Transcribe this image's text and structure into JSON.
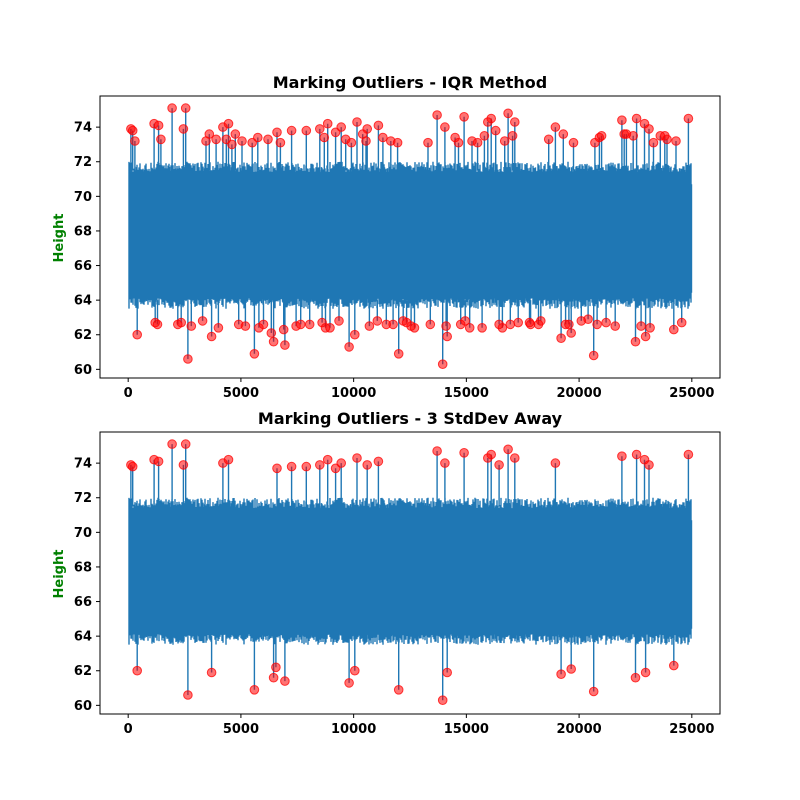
{
  "colors": {
    "line": "#1f77b4",
    "outlier": "#ff0000",
    "ylabel": "#008000",
    "axes": "#000000"
  },
  "chart_data": [
    {
      "type": "line",
      "title": "Marking Outliers - IQR Method",
      "xlabel": "",
      "ylabel": "Height",
      "xlim": [
        -1250,
        26250
      ],
      "ylim": [
        59.5,
        75.8
      ],
      "xticks": [
        "0",
        "5000",
        "10000",
        "15000",
        "20000",
        "25000"
      ],
      "yticks": [
        "60",
        "62",
        "64",
        "66",
        "68",
        "70",
        "72",
        "74"
      ],
      "series": [
        {
          "kind": "line",
          "n_points": 25000,
          "center": 67.99,
          "typical_range": [
            63.5,
            72.0
          ],
          "color": "#1f77b4"
        },
        {
          "kind": "outlier_markers",
          "color": "#ff0000",
          "points": [
            [
              120,
              73.9
            ],
            [
              200,
              73.8
            ],
            [
              300,
              73.2
            ],
            [
              400,
              62.0
            ],
            [
              1150,
              74.2
            ],
            [
              1200,
              62.7
            ],
            [
              1300,
              62.6
            ],
            [
              1350,
              74.1
            ],
            [
              1450,
              73.3
            ],
            [
              1950,
              75.1
            ],
            [
              2200,
              62.6
            ],
            [
              2350,
              62.7
            ],
            [
              2450,
              73.9
            ],
            [
              2550,
              75.1
            ],
            [
              2650,
              60.6
            ],
            [
              2800,
              62.5
            ],
            [
              3300,
              62.8
            ],
            [
              3450,
              73.2
            ],
            [
              3600,
              73.6
            ],
            [
              3700,
              61.9
            ],
            [
              3900,
              73.3
            ],
            [
              4000,
              62.4
            ],
            [
              4200,
              74.0
            ],
            [
              4350,
              73.3
            ],
            [
              4450,
              74.2
            ],
            [
              4600,
              73.0
            ],
            [
              4750,
              73.6
            ],
            [
              4900,
              62.6
            ],
            [
              5050,
              73.2
            ],
            [
              5200,
              62.5
            ],
            [
              5500,
              73.1
            ],
            [
              5600,
              60.9
            ],
            [
              5750,
              73.4
            ],
            [
              5800,
              62.4
            ],
            [
              6000,
              62.6
            ],
            [
              6200,
              73.3
            ],
            [
              6350,
              62.1
            ],
            [
              6450,
              61.6
            ],
            [
              6600,
              73.7
            ],
            [
              6750,
              73.1
            ],
            [
              6900,
              62.3
            ],
            [
              6950,
              61.4
            ],
            [
              7250,
              73.8
            ],
            [
              7450,
              62.5
            ],
            [
              7650,
              62.6
            ],
            [
              7900,
              73.8
            ],
            [
              8050,
              62.6
            ],
            [
              8500,
              73.9
            ],
            [
              8600,
              62.7
            ],
            [
              8700,
              73.4
            ],
            [
              8750,
              62.4
            ],
            [
              8850,
              74.2
            ],
            [
              8950,
              62.4
            ],
            [
              9200,
              73.7
            ],
            [
              9350,
              62.8
            ],
            [
              9450,
              74.0
            ],
            [
              9650,
              73.3
            ],
            [
              9800,
              61.3
            ],
            [
              9900,
              73.1
            ],
            [
              10050,
              62.0
            ],
            [
              10150,
              74.3
            ],
            [
              10400,
              73.6
            ],
            [
              10550,
              73.2
            ],
            [
              10600,
              73.9
            ],
            [
              10700,
              62.5
            ],
            [
              11050,
              62.8
            ],
            [
              11100,
              74.1
            ],
            [
              11300,
              73.4
            ],
            [
              11450,
              62.6
            ],
            [
              11650,
              73.2
            ],
            [
              11750,
              62.6
            ],
            [
              11950,
              73.1
            ],
            [
              12000,
              60.9
            ],
            [
              12200,
              62.8
            ],
            [
              12350,
              62.7
            ],
            [
              12550,
              62.5
            ],
            [
              12700,
              62.4
            ],
            [
              13300,
              73.1
            ],
            [
              13400,
              62.6
            ],
            [
              13700,
              74.7
            ],
            [
              13950,
              60.3
            ],
            [
              14050,
              74.0
            ],
            [
              14100,
              62.5
            ],
            [
              14150,
              61.9
            ],
            [
              14500,
              73.4
            ],
            [
              14650,
              73.1
            ],
            [
              14750,
              62.6
            ],
            [
              14900,
              74.6
            ],
            [
              14950,
              62.8
            ],
            [
              15150,
              62.4
            ],
            [
              15250,
              73.2
            ],
            [
              15500,
              73.1
            ],
            [
              15700,
              62.4
            ],
            [
              15800,
              73.5
            ],
            [
              15950,
              74.3
            ],
            [
              16100,
              74.5
            ],
            [
              16300,
              73.8
            ],
            [
              16450,
              62.6
            ],
            [
              16600,
              62.4
            ],
            [
              16700,
              73.2
            ],
            [
              16850,
              74.8
            ],
            [
              16950,
              62.6
            ],
            [
              17050,
              73.5
            ],
            [
              17150,
              74.3
            ],
            [
              17300,
              62.7
            ],
            [
              17800,
              62.7
            ],
            [
              17850,
              62.6
            ],
            [
              18200,
              62.6
            ],
            [
              18300,
              62.8
            ],
            [
              18650,
              73.3
            ],
            [
              18950,
              74.0
            ],
            [
              19200,
              61.8
            ],
            [
              19300,
              73.6
            ],
            [
              19400,
              62.6
            ],
            [
              19550,
              62.6
            ],
            [
              19650,
              62.1
            ],
            [
              19750,
              73.1
            ],
            [
              20100,
              62.8
            ],
            [
              20400,
              62.9
            ],
            [
              20650,
              60.8
            ],
            [
              20700,
              73.1
            ],
            [
              20800,
              62.6
            ],
            [
              20900,
              73.4
            ],
            [
              21000,
              73.5
            ],
            [
              21200,
              62.7
            ],
            [
              21600,
              62.5
            ],
            [
              21900,
              74.4
            ],
            [
              22000,
              73.6
            ],
            [
              22100,
              73.6
            ],
            [
              22400,
              73.5
            ],
            [
              22500,
              61.6
            ],
            [
              22550,
              74.5
            ],
            [
              22750,
              62.5
            ],
            [
              22900,
              74.2
            ],
            [
              22950,
              61.9
            ],
            [
              23100,
              73.9
            ],
            [
              23150,
              62.4
            ],
            [
              23300,
              73.1
            ],
            [
              23600,
              73.5
            ],
            [
              23800,
              73.5
            ],
            [
              23900,
              73.3
            ],
            [
              24200,
              62.3
            ],
            [
              24300,
              73.2
            ],
            [
              24550,
              62.7
            ],
            [
              24850,
              74.5
            ]
          ]
        }
      ]
    },
    {
      "type": "line",
      "title": "Marking Outliers -  3 StdDev Away",
      "xlabel": "",
      "ylabel": "Height",
      "xlim": [
        -1250,
        26250
      ],
      "ylim": [
        59.5,
        75.8
      ],
      "xticks": [
        "0",
        "5000",
        "10000",
        "15000",
        "20000",
        "25000"
      ],
      "yticks": [
        "60",
        "62",
        "64",
        "66",
        "68",
        "70",
        "72",
        "74"
      ],
      "series": [
        {
          "kind": "line",
          "n_points": 25000,
          "center": 67.99,
          "typical_range": [
            63.5,
            72.0
          ],
          "color": "#1f77b4"
        },
        {
          "kind": "outlier_markers",
          "color": "#ff0000",
          "points": [
            [
              120,
              73.9
            ],
            [
              200,
              73.8
            ],
            [
              400,
              62.0
            ],
            [
              1150,
              74.2
            ],
            [
              1350,
              74.1
            ],
            [
              1950,
              75.1
            ],
            [
              2450,
              73.9
            ],
            [
              2550,
              75.1
            ],
            [
              2650,
              60.6
            ],
            [
              3700,
              61.9
            ],
            [
              4200,
              74.0
            ],
            [
              4450,
              74.2
            ],
            [
              5600,
              60.9
            ],
            [
              6450,
              61.6
            ],
            [
              6550,
              62.2
            ],
            [
              6600,
              73.7
            ],
            [
              6950,
              61.4
            ],
            [
              7250,
              73.8
            ],
            [
              7900,
              73.8
            ],
            [
              8500,
              73.9
            ],
            [
              8850,
              74.2
            ],
            [
              9200,
              73.7
            ],
            [
              9450,
              74.0
            ],
            [
              9800,
              61.3
            ],
            [
              10050,
              62.0
            ],
            [
              10150,
              74.3
            ],
            [
              10600,
              73.9
            ],
            [
              11100,
              74.1
            ],
            [
              12000,
              60.9
            ],
            [
              13700,
              74.7
            ],
            [
              13950,
              60.3
            ],
            [
              14050,
              74.0
            ],
            [
              14150,
              61.9
            ],
            [
              14900,
              74.6
            ],
            [
              15950,
              74.3
            ],
            [
              16100,
              74.5
            ],
            [
              16450,
              73.9
            ],
            [
              16850,
              74.8
            ],
            [
              17150,
              74.3
            ],
            [
              18950,
              74.0
            ],
            [
              19200,
              61.8
            ],
            [
              19650,
              62.1
            ],
            [
              20650,
              60.8
            ],
            [
              21900,
              74.4
            ],
            [
              22500,
              61.6
            ],
            [
              22550,
              74.5
            ],
            [
              22900,
              74.2
            ],
            [
              22950,
              61.9
            ],
            [
              23100,
              73.9
            ],
            [
              24200,
              62.3
            ],
            [
              24850,
              74.5
            ]
          ]
        }
      ]
    }
  ]
}
